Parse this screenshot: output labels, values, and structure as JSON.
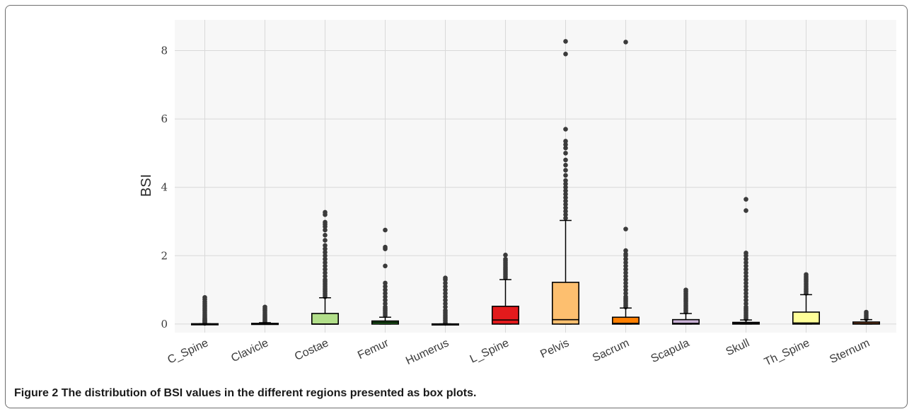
{
  "caption": {
    "label": "Figure 2",
    "text": "The distribution of BSI values in the different regions presented as box plots."
  },
  "chart_data": {
    "type": "box",
    "title": "",
    "xlabel": "",
    "ylabel": "BSI",
    "ylim": [
      -0.25,
      8.9
    ],
    "yticks": [
      0,
      2,
      4,
      6,
      8
    ],
    "grid": true,
    "panel_background": "#f7f7f7",
    "series": [
      {
        "category": "C_Spine",
        "color": "#1f78b4",
        "q1": 0,
        "median": 0,
        "q3": 0.01,
        "whisker_low": 0,
        "whisker_high": 0.01,
        "outliers": [
          0.02,
          0.04,
          0.06,
          0.08,
          0.1,
          0.12,
          0.15,
          0.18,
          0.22,
          0.26,
          0.3,
          0.35,
          0.4,
          0.45,
          0.5,
          0.55,
          0.6,
          0.65,
          0.72,
          0.78
        ]
      },
      {
        "category": "Clavicle",
        "color": "#a6cee3",
        "q1": 0,
        "median": 0,
        "q3": 0.02,
        "whisker_low": 0,
        "whisker_high": 0.04,
        "outliers": [
          0.06,
          0.1,
          0.14,
          0.18,
          0.22,
          0.26,
          0.3,
          0.35,
          0.4,
          0.45,
          0.5
        ]
      },
      {
        "category": "Costae",
        "color": "#b2df8a",
        "q1": 0,
        "median": 0,
        "q3": 0.31,
        "whisker_low": 0,
        "whisker_high": 0.77,
        "outliers": [
          0.8,
          0.85,
          0.9,
          0.95,
          1.0,
          1.05,
          1.1,
          1.15,
          1.2,
          1.25,
          1.3,
          1.4,
          1.5,
          1.6,
          1.7,
          1.8,
          1.9,
          2.0,
          2.1,
          2.2,
          2.3,
          2.45,
          2.6,
          2.75,
          2.85,
          2.92,
          2.98,
          3.2,
          3.27
        ]
      },
      {
        "category": "Femur",
        "color": "#33a02c",
        "q1": 0,
        "median": 0.05,
        "q3": 0.09,
        "whisker_low": 0,
        "whisker_high": 0.2,
        "outliers": [
          0.25,
          0.3,
          0.35,
          0.4,
          0.45,
          0.5,
          0.6,
          0.7,
          0.8,
          0.9,
          1.0,
          1.1,
          1.2,
          1.7,
          2.2,
          2.25,
          2.75
        ]
      },
      {
        "category": "Humerus",
        "color": "#fb9a99",
        "q1": 0,
        "median": 0,
        "q3": 0.005,
        "whisker_low": 0,
        "whisker_high": 0.005,
        "outliers": [
          0.02,
          0.05,
          0.1,
          0.15,
          0.2,
          0.25,
          0.3,
          0.35,
          0.4,
          0.5,
          0.6,
          0.7,
          0.8,
          0.9,
          1.0,
          1.1,
          1.2,
          1.3,
          1.35
        ]
      },
      {
        "category": "L_Spine",
        "color": "#e31a1c",
        "q1": 0,
        "median": 0.12,
        "q3": 0.52,
        "whisker_low": 0,
        "whisker_high": 1.3,
        "outliers": [
          1.35,
          1.4,
          1.45,
          1.5,
          1.55,
          1.6,
          1.65,
          1.7,
          1.75,
          1.8,
          1.85,
          1.9,
          2.02
        ]
      },
      {
        "category": "Pelvis",
        "color": "#fdbf6f",
        "q1": 0,
        "median": 0.13,
        "q3": 1.22,
        "whisker_low": 0,
        "whisker_high": 3.03,
        "outliers": [
          3.1,
          3.2,
          3.3,
          3.4,
          3.5,
          3.6,
          3.7,
          3.8,
          3.9,
          4.0,
          4.1,
          4.2,
          4.35,
          4.5,
          4.65,
          4.8,
          5.0,
          5.15,
          5.25,
          5.35,
          5.7,
          7.9,
          8.27
        ]
      },
      {
        "category": "Sacrum",
        "color": "#ff7f00",
        "q1": 0,
        "median": 0.02,
        "q3": 0.2,
        "whisker_low": 0,
        "whisker_high": 0.47,
        "outliers": [
          0.5,
          0.55,
          0.6,
          0.65,
          0.7,
          0.75,
          0.8,
          0.9,
          1.0,
          1.1,
          1.2,
          1.3,
          1.4,
          1.5,
          1.6,
          1.7,
          1.8,
          1.9,
          2.0,
          2.05,
          2.15,
          2.78,
          8.25
        ]
      },
      {
        "category": "Scapula",
        "color": "#cab2d6",
        "q1": 0,
        "median": 0.02,
        "q3": 0.13,
        "whisker_low": 0,
        "whisker_high": 0.31,
        "outliers": [
          0.35,
          0.4,
          0.45,
          0.5,
          0.55,
          0.6,
          0.65,
          0.7,
          0.75,
          0.8,
          0.85,
          0.9,
          0.95,
          1.0
        ]
      },
      {
        "category": "Skull",
        "color": "#6a3d9a",
        "q1": 0,
        "median": 0.02,
        "q3": 0.05,
        "whisker_low": 0,
        "whisker_high": 0.12,
        "outliers": [
          0.15,
          0.2,
          0.25,
          0.3,
          0.35,
          0.4,
          0.45,
          0.5,
          0.6,
          0.7,
          0.8,
          0.9,
          1.0,
          1.1,
          1.2,
          1.3,
          1.4,
          1.5,
          1.6,
          1.7,
          1.8,
          1.9,
          2.0,
          2.08,
          3.32,
          3.65
        ]
      },
      {
        "category": "Th_Spine",
        "color": "#ffff99",
        "q1": 0,
        "median": 0.03,
        "q3": 0.35,
        "whisker_low": 0,
        "whisker_high": 0.86,
        "outliers": [
          0.9,
          0.95,
          1.0,
          1.05,
          1.1,
          1.15,
          1.2,
          1.25,
          1.3,
          1.35,
          1.4,
          1.45
        ]
      },
      {
        "category": "Sternum",
        "color": "#b15928",
        "q1": 0,
        "median": 0.01,
        "q3": 0.06,
        "whisker_low": 0,
        "whisker_high": 0.13,
        "outliers": [
          0.15,
          0.2,
          0.25,
          0.3,
          0.35
        ]
      }
    ]
  }
}
